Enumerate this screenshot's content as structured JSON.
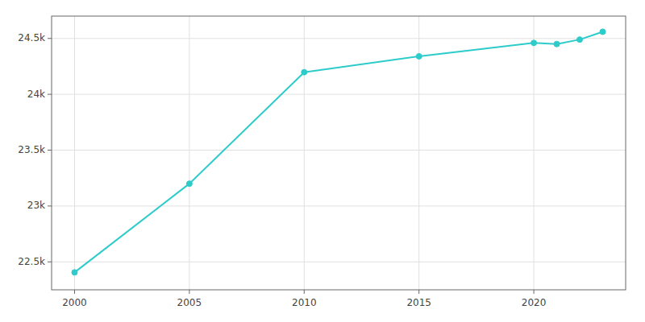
{
  "chart_data": {
    "type": "line",
    "x": [
      2000,
      2005,
      2010,
      2015,
      2020,
      2021,
      2022,
      2023
    ],
    "values": [
      22406,
      23200,
      24198,
      24340,
      24460,
      24450,
      24490,
      24560
    ],
    "color": "#2ecbcb",
    "marker": "circle",
    "xlim": [
      1999,
      2024
    ],
    "ylim": [
      22250,
      24700
    ],
    "xticks": [
      2000,
      2005,
      2010,
      2015,
      2020
    ],
    "yticks": [
      {
        "value": 22500,
        "label": "22.5k"
      },
      {
        "value": 23000,
        "label": "23k"
      },
      {
        "value": 23500,
        "label": "23.5k"
      },
      {
        "value": 24000,
        "label": "24k"
      },
      {
        "value": 24500,
        "label": "24.5k"
      }
    ],
    "grid": true
  }
}
